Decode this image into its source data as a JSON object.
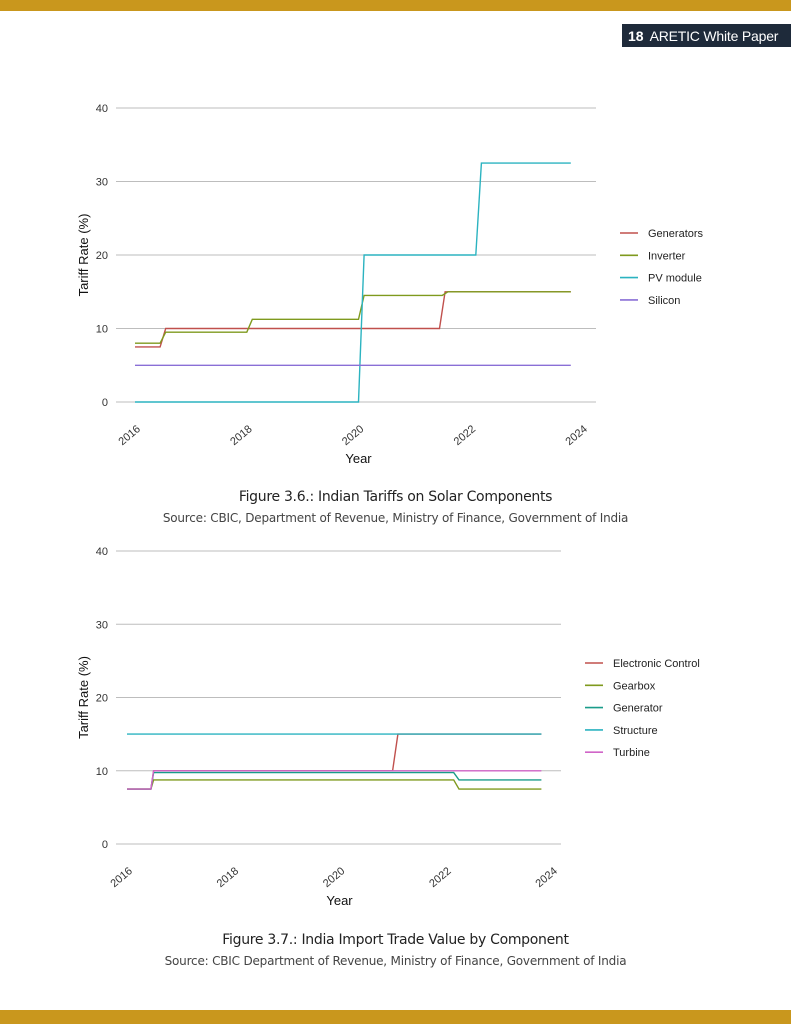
{
  "header": {
    "page_number": "18",
    "publication": "ARETIC White Paper"
  },
  "colors": {
    "bar": "#c9971d",
    "grid": "#bdbdbd",
    "tag_bg": "#1e2a3a"
  },
  "figures": [
    {
      "title": "Figure 3.6.: Indian Tariffs on Solar Components",
      "source": "Source: CBIC, Department of Revenue, Ministry of Finance, Government of India"
    },
    {
      "title": "Figure 3.7.: India Import Trade Value by Component",
      "source": "Source: CBIC Department of Revenue, Ministry of Finance, Government of India"
    }
  ],
  "chart_data": [
    {
      "type": "line",
      "xlabel": "Year",
      "ylabel": "Tariff Rate (%)",
      "xlim": [
        2016,
        2024
      ],
      "ylim": [
        0,
        40
      ],
      "xticks": [
        "2016",
        "2018",
        "2020",
        "2022",
        "2024"
      ],
      "yticks": [
        "0",
        "10",
        "20",
        "30",
        "40"
      ],
      "grid": "horizontal",
      "legend_position": "right",
      "series": [
        {
          "name": "Generators",
          "color": "#c0504d",
          "points": [
            [
              2016.0,
              7.5
            ],
            [
              2016.45,
              7.5
            ],
            [
              2016.55,
              10
            ],
            [
              2021.45,
              10
            ],
            [
              2021.55,
              15
            ],
            [
              2023.8,
              15
            ]
          ]
        },
        {
          "name": "Inverter",
          "color": "#7f9a1e",
          "points": [
            [
              2016.0,
              8
            ],
            [
              2016.45,
              8
            ],
            [
              2016.55,
              9.5
            ],
            [
              2018.0,
              9.5
            ],
            [
              2018.1,
              11.25
            ],
            [
              2020.0,
              11.25
            ],
            [
              2020.1,
              14.5
            ],
            [
              2021.5,
              14.5
            ],
            [
              2021.6,
              15
            ],
            [
              2023.8,
              15
            ]
          ]
        },
        {
          "name": "PV module",
          "color": "#2bb3c0",
          "points": [
            [
              2016.0,
              0
            ],
            [
              2020.0,
              0
            ],
            [
              2020.1,
              20
            ],
            [
              2022.1,
              20
            ],
            [
              2022.2,
              32.5
            ],
            [
              2023.8,
              32.5
            ]
          ]
        },
        {
          "name": "Silicon",
          "color": "#8a6fd6",
          "points": [
            [
              2016.0,
              5
            ],
            [
              2023.8,
              5
            ]
          ]
        }
      ]
    },
    {
      "type": "line",
      "xlabel": "Year",
      "ylabel": "Tariff Rate (%)",
      "xlim": [
        2016,
        2024
      ],
      "ylim": [
        0,
        40
      ],
      "xticks": [
        "2016",
        "2018",
        "2020",
        "2022",
        "2024"
      ],
      "yticks": [
        "0",
        "10",
        "20",
        "30",
        "40"
      ],
      "grid": "horizontal",
      "legend_position": "right",
      "series": [
        {
          "name": "Electronic Control",
          "color": "#c0504d",
          "points": [
            [
              2016.0,
              7.5
            ],
            [
              2016.45,
              7.5
            ],
            [
              2016.5,
              10
            ],
            [
              2021.0,
              10
            ],
            [
              2021.1,
              15
            ],
            [
              2023.8,
              15
            ]
          ]
        },
        {
          "name": "Gearbox",
          "color": "#7f9a1e",
          "points": [
            [
              2016.0,
              7.5
            ],
            [
              2016.45,
              7.5
            ],
            [
              2016.5,
              8.75
            ],
            [
              2022.15,
              8.75
            ],
            [
              2022.25,
              7.5
            ],
            [
              2023.8,
              7.5
            ]
          ]
        },
        {
          "name": "Generator",
          "color": "#1a9c8a",
          "points": [
            [
              2016.0,
              7.5
            ],
            [
              2016.45,
              7.5
            ],
            [
              2016.5,
              9.75
            ],
            [
              2022.15,
              9.75
            ],
            [
              2022.25,
              8.75
            ],
            [
              2023.8,
              8.75
            ]
          ]
        },
        {
          "name": "Structure",
          "color": "#2bb3c0",
          "points": [
            [
              2016.0,
              15
            ],
            [
              2023.8,
              15
            ]
          ]
        },
        {
          "name": "Turbine",
          "color": "#d065c8",
          "points": [
            [
              2016.0,
              7.5
            ],
            [
              2016.45,
              7.5
            ],
            [
              2016.5,
              10
            ],
            [
              2023.8,
              10
            ]
          ]
        }
      ]
    }
  ]
}
